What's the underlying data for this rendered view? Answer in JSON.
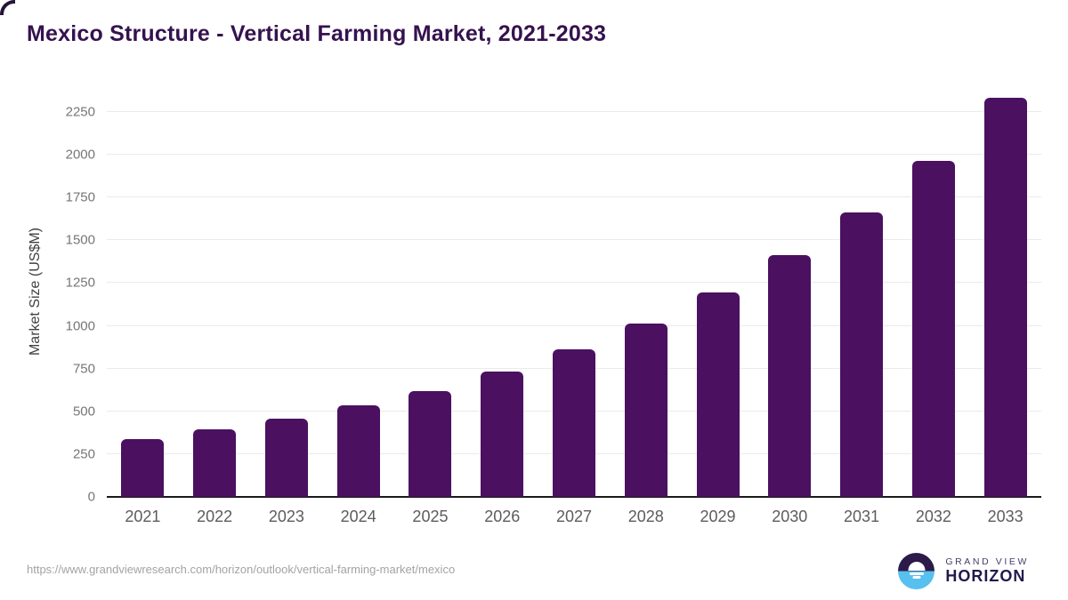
{
  "title": "Mexico Structure - Vertical Farming Market, 2021-2033",
  "chart_data": {
    "type": "bar",
    "title": "Mexico Structure - Vertical Farming Market, 2021-2033",
    "xlabel": "",
    "ylabel": "Market Size (US$M)",
    "categories": [
      "2021",
      "2022",
      "2023",
      "2024",
      "2025",
      "2026",
      "2027",
      "2028",
      "2029",
      "2030",
      "2031",
      "2032",
      "2033"
    ],
    "values": [
      340,
      394,
      456,
      535,
      620,
      730,
      861,
      1013,
      1196,
      1414,
      1661,
      1964,
      2330
    ],
    "ylim": [
      0,
      2400
    ],
    "yticks": [
      0,
      250,
      500,
      750,
      1000,
      1250,
      1500,
      1750,
      2000,
      2250
    ],
    "grid": "horizontal",
    "legend": "none"
  },
  "colors": {
    "bar": "#4B1060",
    "title": "#35124F",
    "gridline": "#EBEBEB",
    "axis_line": "#1A1A1A",
    "y_tick_text": "#767676",
    "x_label_text": "#5C5C5C",
    "url_text": "#A3A3A3",
    "logo_purple": "#2C1A4A",
    "logo_blue": "#57C0EF",
    "logo_text": "#201A4D"
  },
  "footer": {
    "source_url": "https://www.grandviewresearch.com/horizon/outlook/vertical-farming-market/mexico",
    "logo": {
      "top": "GRAND VIEW",
      "bottom": "HORIZON"
    }
  }
}
